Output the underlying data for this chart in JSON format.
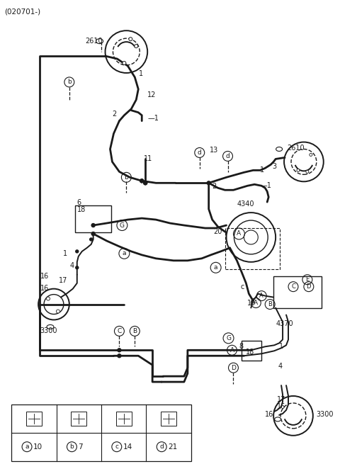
{
  "title": "(020701-)",
  "bg_color": "#ffffff",
  "line_color": "#1a1a1a",
  "figsize": [
    4.8,
    6.55
  ],
  "dpi": 100,
  "legend_labels": [
    "a",
    "b",
    "c",
    "d"
  ],
  "legend_nums": [
    "10",
    "7",
    "14",
    "21"
  ]
}
